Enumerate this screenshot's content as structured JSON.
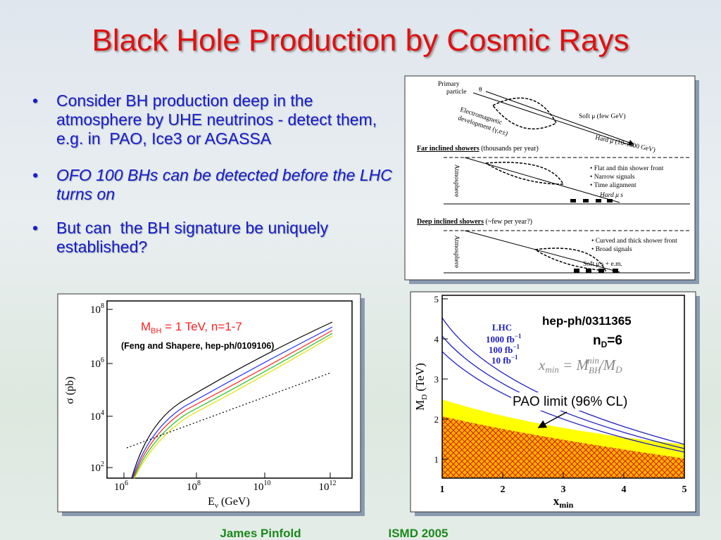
{
  "title": "Black Hole Production by Cosmic Rays",
  "bullets": [
    "Consider BH production deep in the atmosphere by UHE neutrinos - detect them, e.g. in  PAO, Ice3 or AGASSA",
    "OFO 100 BHs can be detected before the LHC turns on",
    "But can  the BH signature be uniquely established?"
  ],
  "shower_diagram": {
    "primary": [
      "Primary",
      "particle"
    ],
    "theta": "θ",
    "em": [
      "Electromagnetic",
      "development (γ,e±)"
    ],
    "soft_mu": "Soft μ (few GeV)",
    "hard_mu": "Hard μ (10-1000 GeV)",
    "far": {
      "heading": "Far inclined showers",
      "note": "(thousands per year)",
      "atmosphere": "Atmosphere",
      "features": [
        "• Flat and thin shower front",
        "• Narrow signals",
        "• Time alignment"
      ],
      "muons": "Hard μ s"
    },
    "deep": {
      "heading": "Deep inclined showers",
      "note": "(~few per year?)",
      "atmosphere": "Atmosphere",
      "features": [
        "• Curved and thick shower front",
        "• Broad signals"
      ],
      "muons": "Soft μ s + e.m."
    }
  },
  "cross_section_plot": {
    "legend": {
      "m": "M",
      "sub": "BH",
      "rest": " = 1 TeV, n=1-7"
    },
    "credit": "(Feng and Shapere, hep-ph/0109106)",
    "ylabel": "σ  (pb)",
    "xlabel": {
      "e": "E",
      "sub": "ν",
      "rest": "  (GeV)"
    },
    "yticks": [
      {
        "base": "10",
        "exp": "8"
      },
      {
        "base": "10",
        "exp": "6"
      },
      {
        "base": "10",
        "exp": "4"
      },
      {
        "base": "10",
        "exp": "2"
      }
    ],
    "xticks": [
      {
        "base": "10",
        "exp": "6"
      },
      {
        "base": "10",
        "exp": "8"
      },
      {
        "base": "10",
        "exp": "10"
      },
      {
        "base": "10",
        "exp": "12"
      }
    ]
  },
  "mass_plot": {
    "ref": "hep-ph/0311365",
    "nd": {
      "n": "n",
      "sub": "D",
      "rest": "=6"
    },
    "lhc": "LHC",
    "lumis": [
      {
        "v": "1000 fb",
        "exp": "−1"
      },
      {
        "v": "100 fb",
        "exp": "−1"
      },
      {
        "v": "10 fb",
        "exp": "−1"
      }
    ],
    "formula": {
      "x": "x",
      "xsub": "min",
      "eq": " = M",
      "msub": "BH",
      "msup": "min",
      "div": "/M",
      "dsub": "D"
    },
    "pao": "PAO limit (96% CL)",
    "ylabel": {
      "m": "M",
      "sub": "D",
      "rest": " (TeV)"
    },
    "xlabel": {
      "x": "x",
      "sub": "min"
    },
    "xticks": [
      1,
      2,
      3,
      4,
      5
    ],
    "yticks": [
      1,
      2,
      3,
      4,
      5
    ]
  },
  "footer": {
    "author": "James Pinfold",
    "conference": "ISMD 2005"
  }
}
